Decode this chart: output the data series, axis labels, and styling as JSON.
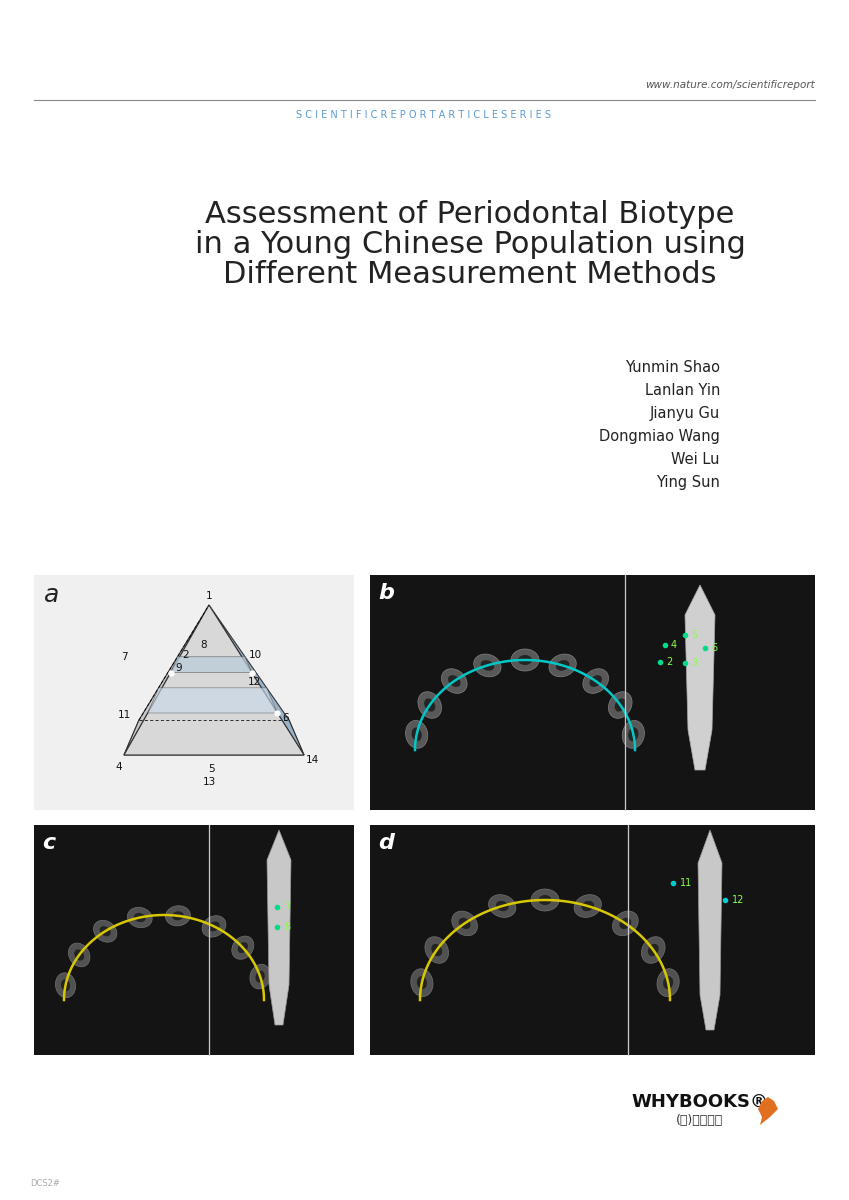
{
  "bg_color": "#ffffff",
  "header_url": "www.nature.com/scientificreport",
  "header_series": "S C I E N T I F I C R E P O R T A R T I C L E S E R I E S",
  "title_line1": "Assessment of Periodontal Biotype",
  "title_line2": "in a Young Chinese Population using",
  "title_line3": "Different Measurement Methods",
  "authors": [
    "Yunmin Shao",
    "Lanlan Yin",
    "Jianyu Gu",
    "Dongmiao Wang",
    "Wei Lu",
    "Ying Sun"
  ],
  "panel_a_label": "a",
  "panel_b_label": "b",
  "panel_c_label": "c",
  "panel_d_label": "d",
  "footer_brand": "WHYBOOKS®",
  "footer_sub": "(주)숱이북스",
  "header_color": "#5b9bd5",
  "title_color": "#222222",
  "author_color": "#222222",
  "label_color": "#222222",
  "line_color": "#888888"
}
